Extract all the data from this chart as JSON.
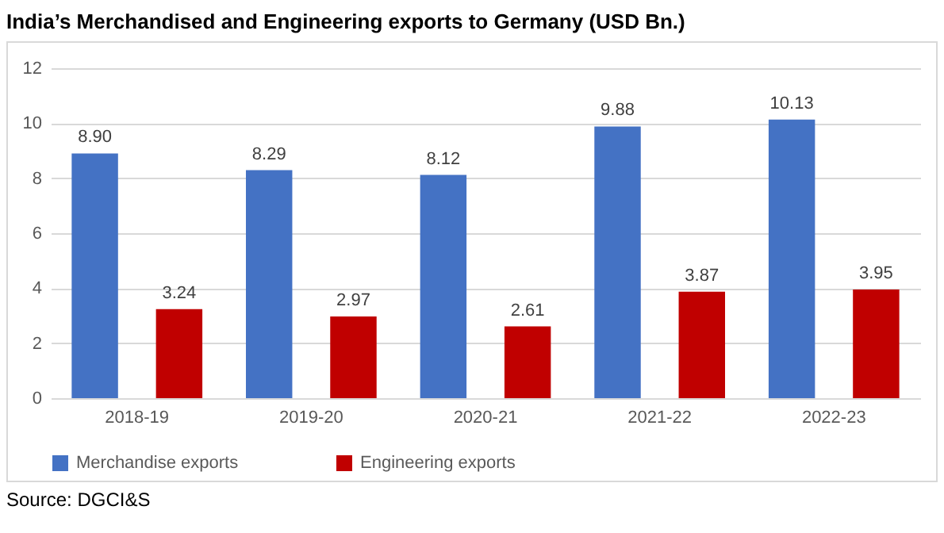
{
  "chart_data": {
    "type": "bar",
    "title": "India’s Merchandised and Engineering exports to Germany  (USD Bn.)",
    "categories": [
      "2018-19",
      "2019-20",
      "2020-21",
      "2021-22",
      "2022-23"
    ],
    "series": [
      {
        "name": "Merchandise exports",
        "color": "#4472c4",
        "values": [
          8.9,
          8.29,
          8.12,
          9.88,
          10.13
        ],
        "value_labels": [
          "8.90",
          "8.29",
          "8.12",
          "9.88",
          "10.13"
        ]
      },
      {
        "name": "Engineering exports",
        "color": "#c00000",
        "values": [
          3.24,
          2.97,
          2.61,
          3.87,
          3.95
        ],
        "value_labels": [
          "3.24",
          "2.97",
          "2.61",
          "3.87",
          "3.95"
        ]
      }
    ],
    "ylim": [
      0,
      12
    ],
    "yticks": [
      0,
      2,
      4,
      6,
      8,
      10,
      12
    ],
    "grid": "y",
    "legend": "bottom",
    "annotations": [
      "Source: DGCI&S"
    ]
  }
}
